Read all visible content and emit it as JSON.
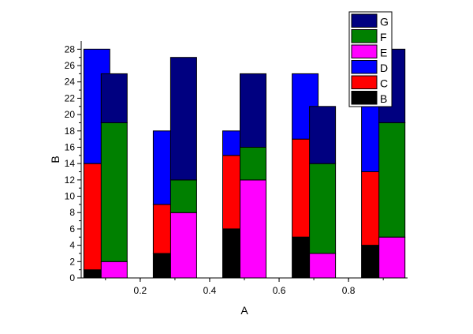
{
  "chart_data": {
    "type": "bar",
    "stacked": true,
    "xlabel": "A",
    "ylabel": "B",
    "xlim": [
      0.03,
      0.97
    ],
    "ylim": [
      0,
      29
    ],
    "xticks": [
      {
        "value": 0.2,
        "label": "0.2"
      },
      {
        "value": 0.4,
        "label": "0.4"
      },
      {
        "value": 0.6,
        "label": "0.6"
      },
      {
        "value": 0.8,
        "label": "0.8"
      }
    ],
    "yticks": [
      {
        "value": 0,
        "label": "0"
      },
      {
        "value": 2,
        "label": "2"
      },
      {
        "value": 4,
        "label": "4"
      },
      {
        "value": 6,
        "label": "6"
      },
      {
        "value": 8,
        "label": "8"
      },
      {
        "value": 10,
        "label": "10"
      },
      {
        "value": 12,
        "label": "12"
      },
      {
        "value": 14,
        "label": "14"
      },
      {
        "value": 16,
        "label": "16"
      },
      {
        "value": 18,
        "label": "18"
      },
      {
        "value": 20,
        "label": "20"
      },
      {
        "value": 22,
        "label": "22"
      },
      {
        "value": 24,
        "label": "24"
      },
      {
        "value": 26,
        "label": "26"
      },
      {
        "value": 28,
        "label": "28"
      }
    ],
    "grid": false,
    "legend_position": "top-right",
    "colors": {
      "B": "#000000",
      "C": "#ff0000",
      "D": "#0000ff",
      "E": "#ff00ff",
      "F": "#008000",
      "G": "#000080"
    },
    "legend": [
      "G",
      "F",
      "E",
      "D",
      "C",
      "B"
    ],
    "stack_groups": [
      {
        "bar_width": 0.075,
        "x": [
          0.075,
          0.275,
          0.475,
          0.675,
          0.875
        ],
        "series": [
          {
            "name": "B",
            "values": [
              1,
              3,
              6,
              5,
              4
            ]
          },
          {
            "name": "C",
            "values": [
              13,
              6,
              9,
              12,
              9
            ]
          },
          {
            "name": "D",
            "values": [
              14,
              9,
              3,
              8,
              10
            ]
          }
        ]
      },
      {
        "bar_width": 0.075,
        "x": [
          0.125,
          0.325,
          0.525,
          0.725,
          0.925
        ],
        "series": [
          {
            "name": "E",
            "values": [
              2,
              8,
              12,
              3,
              5
            ]
          },
          {
            "name": "F",
            "values": [
              17,
              4,
              4,
              11,
              14
            ]
          },
          {
            "name": "G",
            "values": [
              6,
              15,
              9,
              7,
              9
            ]
          }
        ]
      }
    ]
  }
}
